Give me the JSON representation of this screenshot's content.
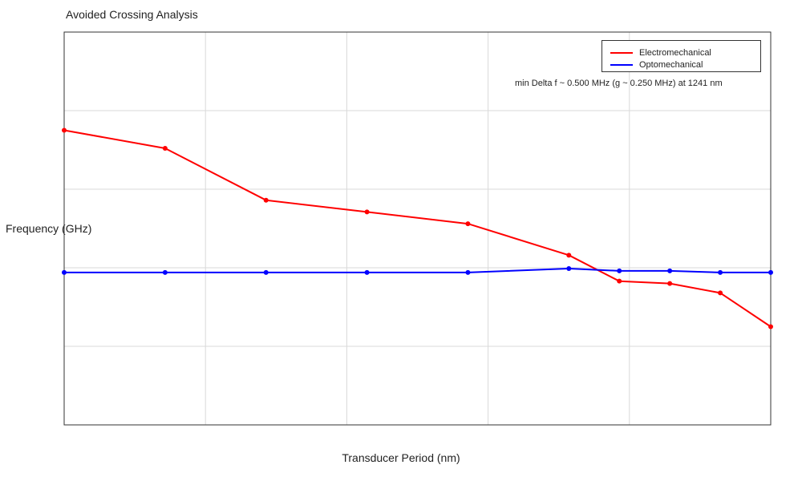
{
  "chart_data": {
    "type": "line",
    "title": "Avoided Crossing Analysis",
    "xlabel": "Transducer Period (nm)",
    "ylabel": "Frequency (GHz)",
    "grid": true,
    "legend_position": "top-right",
    "annotation": "min Delta f ~ 0.500 MHz (g ~ 0.250 MHz) at 1241 nm",
    "x": [
      0,
      1,
      2,
      3,
      4,
      5,
      5.5,
      6,
      6.5,
      7
    ],
    "xlim": [
      0,
      7
    ],
    "ylim": [
      0,
      5
    ],
    "x_grid_count": 5,
    "y_grid_count": 5,
    "series": [
      {
        "name": "Electromechanical",
        "color": "#ff0000",
        "values": [
          3.75,
          3.52,
          2.86,
          2.71,
          2.56,
          2.16,
          1.83,
          1.8,
          1.68,
          1.25
        ]
      },
      {
        "name": "Optomechanical",
        "color": "#0000ff",
        "values": [
          1.94,
          1.94,
          1.94,
          1.94,
          1.94,
          1.99,
          1.96,
          1.96,
          1.94,
          1.94
        ]
      }
    ]
  }
}
